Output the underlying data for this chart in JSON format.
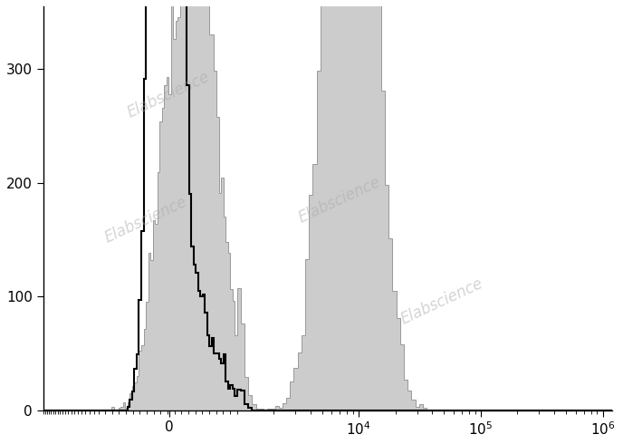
{
  "title": "",
  "watermark": "Elabscience",
  "ylim": [
    0,
    355
  ],
  "yticks": [
    0,
    100,
    200,
    300
  ],
  "background_color": "#ffffff",
  "unstained_color": "black",
  "stained_fill_color": "#cccccc",
  "stained_edge_color": "#999999",
  "linthresh": 1000,
  "linscale": 0.5,
  "xlim_left": -3000,
  "xlim_right": 1200000
}
